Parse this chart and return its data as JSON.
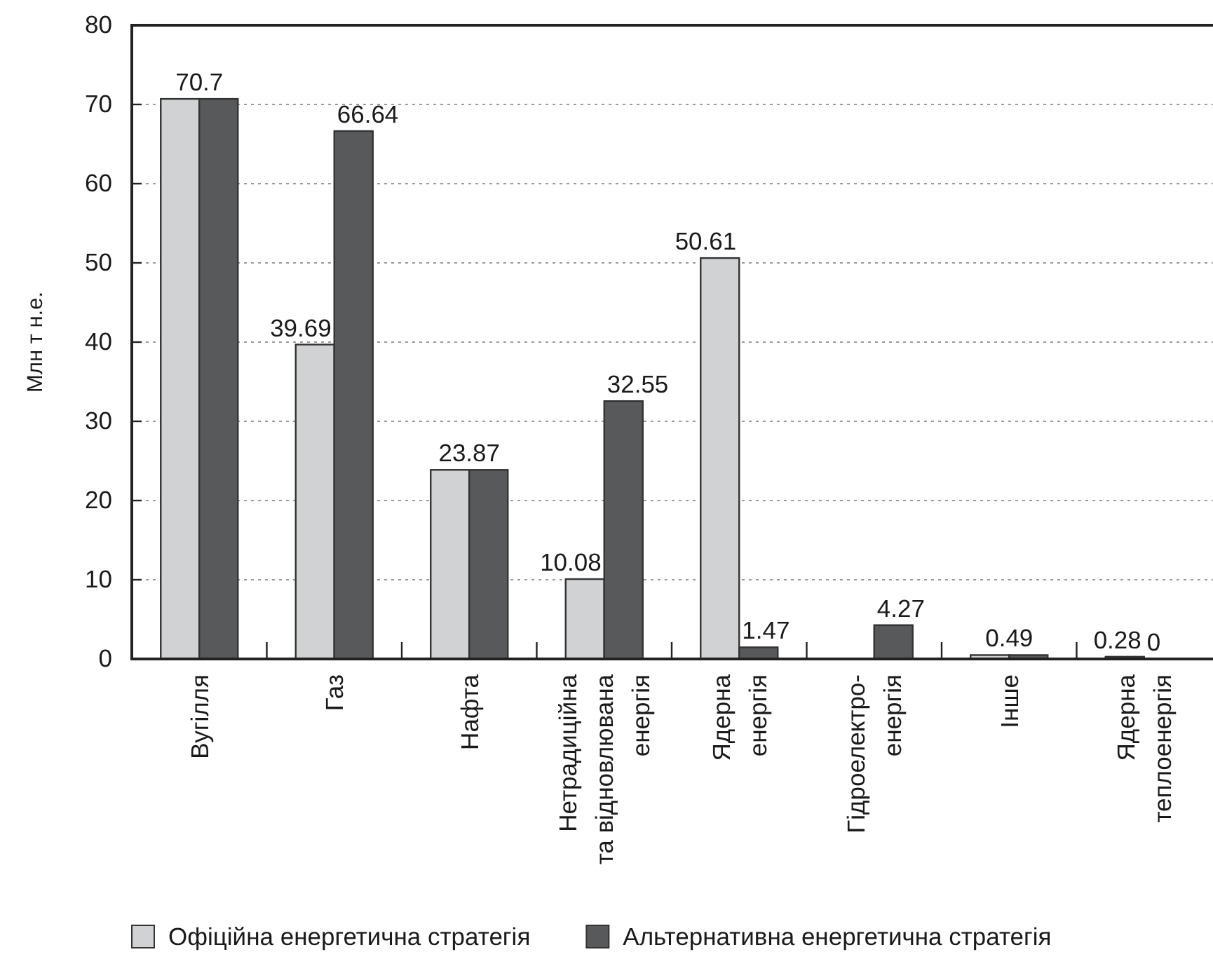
{
  "chart_data": {
    "type": "bar",
    "ylabel": "Млн т н.е.",
    "categories": [
      "Вугілля",
      "Газ",
      "Нафта",
      "Нетрадиційна\nта відновлювана\nенергія",
      "Ядерна\nенергія",
      "Гідроелектро-\nенергія",
      "Інше",
      "Ядерна\nтеплоенергія"
    ],
    "series": [
      {
        "name": "Офіційна енергетична стратегія",
        "color": "#d1d2d4",
        "values": [
          70.7,
          39.69,
          23.87,
          10.08,
          50.61,
          null,
          0.49,
          0.28
        ],
        "value_labels": [
          "70.7",
          "39.69",
          "23.87",
          "10.08",
          "50.61",
          null,
          "0.49",
          "0.28"
        ]
      },
      {
        "name": "Альтернативна енергетична стратегія",
        "color": "#58595b",
        "values": [
          70.7,
          66.64,
          23.87,
          32.55,
          1.47,
          4.27,
          0.49,
          0
        ],
        "value_labels": [
          null,
          "66.64",
          null,
          "32.55",
          "1.47",
          "4.27",
          null,
          "0"
        ]
      }
    ],
    "ylim": [
      0,
      80
    ],
    "yticks": [
      0,
      10,
      20,
      30,
      40,
      50,
      60,
      70,
      80
    ],
    "grid": "y",
    "legend": "bottom"
  }
}
